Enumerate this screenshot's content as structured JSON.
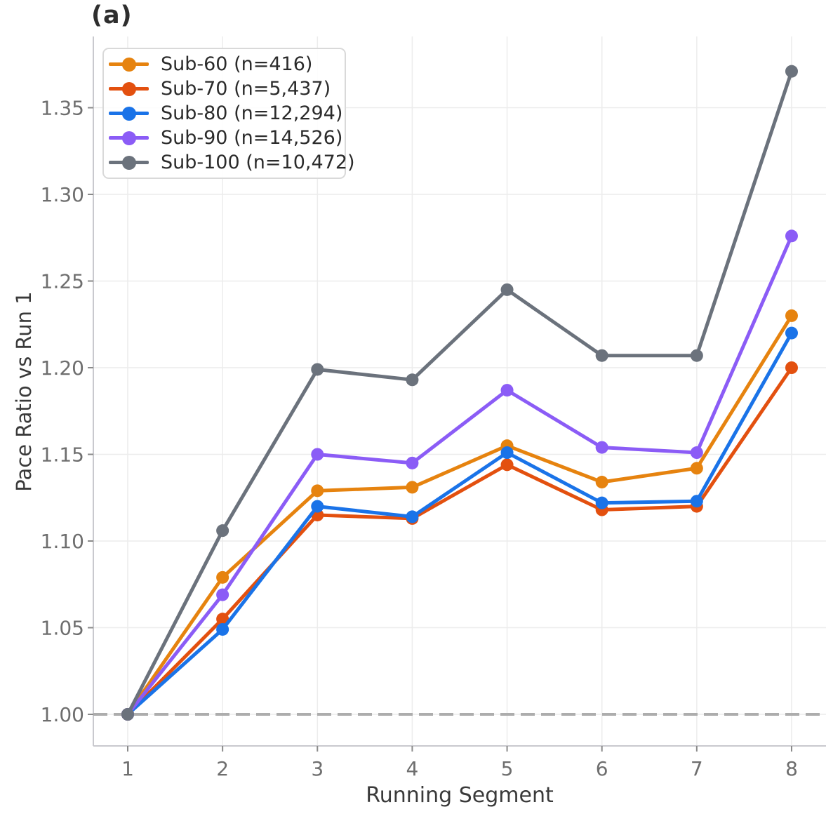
{
  "chart_data": {
    "type": "line",
    "title": "(a)",
    "xlabel": "Running Segment",
    "ylabel": "Pace Ratio vs Run 1",
    "x": [
      1,
      2,
      3,
      4,
      5,
      6,
      7,
      8
    ],
    "xtick_labels": [
      "1",
      "2",
      "3",
      "4",
      "5",
      "6",
      "7",
      "8"
    ],
    "yticks": [
      1.0,
      1.05,
      1.1,
      1.15,
      1.2,
      1.25,
      1.3,
      1.35
    ],
    "ytick_labels": [
      "1.00",
      "1.05",
      "1.10",
      "1.15",
      "1.20",
      "1.25",
      "1.30",
      "1.35"
    ],
    "xlim": [
      0.64,
      8.37
    ],
    "ylim": [
      0.982,
      1.391
    ],
    "grid": true,
    "legend_position": "upper-left",
    "reference_line": {
      "y": 1.0,
      "style": "dashed",
      "color": "#adadad"
    },
    "series": [
      {
        "name": "Sub-60 (n=416)",
        "color": "#e6830f",
        "values": [
          1.0,
          1.079,
          1.129,
          1.131,
          1.155,
          1.134,
          1.142,
          1.23
        ]
      },
      {
        "name": "Sub-70 (n=5,437)",
        "color": "#e3500f",
        "values": [
          1.0,
          1.055,
          1.115,
          1.113,
          1.144,
          1.118,
          1.12,
          1.2
        ]
      },
      {
        "name": "Sub-80 (n=12,294)",
        "color": "#1a73e8",
        "values": [
          1.0,
          1.049,
          1.12,
          1.114,
          1.151,
          1.122,
          1.123,
          1.22
        ]
      },
      {
        "name": "Sub-90 (n=14,526)",
        "color": "#8b5cf6",
        "values": [
          1.0,
          1.069,
          1.15,
          1.145,
          1.187,
          1.154,
          1.151,
          1.276
        ]
      },
      {
        "name": "Sub-100 (n=10,472)",
        "color": "#6b727c",
        "values": [
          1.0,
          1.106,
          1.199,
          1.193,
          1.245,
          1.207,
          1.207,
          1.371
        ]
      }
    ],
    "style_colors": {
      "gridline": "#ececec",
      "spine": "#c9c9ce",
      "tick": "#8a8a8a",
      "tick_label": "#6e6e6e",
      "axis_label": "#3a3a3a",
      "title": "#2e2e2e"
    }
  }
}
